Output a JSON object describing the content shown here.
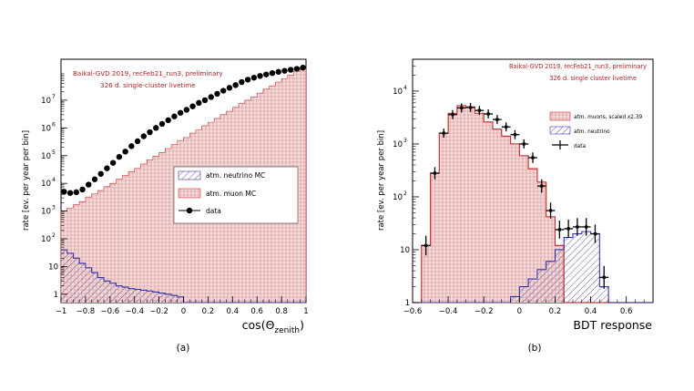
{
  "chart_data": [
    {
      "type": "histogram",
      "panel_label": "(a)",
      "annotations": [
        "Baikal-GVD 2019, recFeb21_run3, preliminary",
        "326 d. single-cluster livetime"
      ],
      "xlabel_main": "cos(Θ",
      "xlabel_sub": "zenith",
      "xlabel_close": ")",
      "ylabel": "rate [ev. per year per bin]",
      "xlim": [
        -1,
        1
      ],
      "ylim": [
        0.5,
        300000000
      ],
      "yscale": "log",
      "x_ticks": [
        "−1",
        "−0.8",
        "−0.6",
        "−0.4",
        "−0.2",
        "0",
        "0.2",
        "0.4",
        "0.6",
        "0.8",
        "1"
      ],
      "x_tick_values": [
        -1,
        -0.8,
        -0.6,
        -0.4,
        -0.2,
        0,
        0.2,
        0.4,
        0.6,
        0.8,
        1
      ],
      "y_ticks": [
        {
          "value": 1,
          "base": "1",
          "exp": ""
        },
        {
          "value": 10,
          "base": "10",
          "exp": ""
        },
        {
          "value": 100,
          "base": "10",
          "exp": "2"
        },
        {
          "value": 1000,
          "base": "10",
          "exp": "3"
        },
        {
          "value": 10000,
          "base": "10",
          "exp": "4"
        },
        {
          "value": 100000,
          "base": "10",
          "exp": "5"
        },
        {
          "value": 1000000,
          "base": "10",
          "exp": "6"
        },
        {
          "value": 10000000,
          "base": "10",
          "exp": "7"
        }
      ],
      "bin_edges": [
        -1,
        -0.95,
        -0.9,
        -0.85,
        -0.8,
        -0.75,
        -0.7,
        -0.65,
        -0.6,
        -0.55,
        -0.5,
        -0.45,
        -0.4,
        -0.35,
        -0.3,
        -0.25,
        -0.2,
        -0.15,
        -0.1,
        -0.05,
        0,
        0.05,
        0.1,
        0.15,
        0.2,
        0.25,
        0.3,
        0.35,
        0.4,
        0.45,
        0.5,
        0.55,
        0.6,
        0.65,
        0.7,
        0.75,
        0.8,
        0.85,
        0.9,
        0.95,
        1
      ],
      "series": [
        {
          "name": "atm. muon MC",
          "kind": "filled-histogram",
          "color": "#cc3333",
          "values": [
            1000,
            1300,
            1700,
            2200,
            3200,
            4200,
            5500,
            7600,
            10000,
            14000,
            19000,
            26000,
            35000,
            50000,
            70000,
            95000,
            130000,
            180000,
            250000,
            350000,
            450000,
            650000,
            850000,
            1200000,
            1600000,
            2200000,
            3000000,
            4000000,
            5500000,
            7500000,
            10000000,
            13000000,
            18000000,
            25000000,
            33000000,
            45000000,
            60000000,
            80000000,
            110000000,
            150000000
          ]
        },
        {
          "name": "atm. neutrino MC",
          "kind": "hatched-histogram",
          "color": "#3333aa",
          "values": [
            40,
            30,
            20,
            13,
            9,
            6,
            4,
            3,
            2.5,
            2,
            1.8,
            1.6,
            1.5,
            1.4,
            1.3,
            1.2,
            1.1,
            1,
            0.9,
            0.8,
            0.5,
            0.5,
            0.5,
            0.5,
            0.5,
            0.5,
            0.5,
            0.5,
            0.5,
            0.5,
            0.5,
            0.5,
            0.5,
            0.5,
            0.5,
            0.5,
            0.5,
            0.5,
            0.5,
            0.5
          ]
        },
        {
          "name": "data",
          "kind": "points",
          "color": "#000000",
          "x": [
            -0.975,
            -0.925,
            -0.875,
            -0.825,
            -0.775,
            -0.725,
            -0.675,
            -0.625,
            -0.575,
            -0.525,
            -0.475,
            -0.425,
            -0.375,
            -0.325,
            -0.275,
            -0.225,
            -0.175,
            -0.125,
            -0.075,
            -0.025,
            0.025,
            0.075,
            0.125,
            0.175,
            0.225,
            0.275,
            0.325,
            0.375,
            0.425,
            0.475,
            0.525,
            0.575,
            0.625,
            0.675,
            0.725,
            0.775,
            0.825,
            0.875,
            0.925,
            0.975
          ],
          "values": [
            5000,
            4500,
            4800,
            6000,
            9000,
            14000,
            22000,
            35000,
            55000,
            90000,
            140000,
            220000,
            330000,
            500000,
            700000,
            1000000,
            1400000,
            1900000,
            2600000,
            3500000,
            4500000,
            6000000,
            8000000,
            10000000,
            13000000,
            17000000,
            22000000,
            28000000,
            35000000,
            45000000,
            55000000,
            65000000,
            75000000,
            85000000,
            95000000,
            105000000,
            115000000,
            125000000,
            135000000,
            150000000
          ]
        }
      ],
      "legend": [
        {
          "label": "atm. neutrino MC",
          "marker": "neutrino"
        },
        {
          "label": "atm. muon MC",
          "marker": "muon"
        },
        {
          "label": "data",
          "marker": "point"
        }
      ],
      "legend_position": "center-right"
    },
    {
      "type": "histogram",
      "panel_label": "(b)",
      "annotations": [
        "Baikal-GVD 2019, recFeb21_run3, preliminary",
        "326 d. single cluster livetime"
      ],
      "xlabel": "BDT response",
      "ylabel": "rate [ev. per year per bin]",
      "xlim": [
        -0.6,
        0.75
      ],
      "ylim": [
        1,
        40000
      ],
      "yscale": "log",
      "x_ticks": [
        "−0.6",
        "−0.4",
        "−0.2",
        "0",
        "0.2",
        "0.4",
        "0.6"
      ],
      "x_tick_values": [
        -0.6,
        -0.4,
        -0.2,
        0,
        0.2,
        0.4,
        0.6
      ],
      "y_ticks": [
        {
          "value": 1,
          "base": "1",
          "exp": ""
        },
        {
          "value": 10,
          "base": "10",
          "exp": ""
        },
        {
          "value": 100,
          "base": "10",
          "exp": "2"
        },
        {
          "value": 1000,
          "base": "10",
          "exp": "3"
        },
        {
          "value": 10000,
          "base": "10",
          "exp": "4"
        }
      ],
      "bin_edges": [
        -0.6,
        -0.55,
        -0.5,
        -0.45,
        -0.4,
        -0.35,
        -0.3,
        -0.25,
        -0.2,
        -0.15,
        -0.1,
        -0.05,
        0,
        0.05,
        0.1,
        0.15,
        0.2,
        0.25,
        0.3,
        0.35,
        0.4,
        0.45,
        0.5,
        0.55,
        0.6,
        0.65,
        0.7,
        0.75
      ],
      "series": [
        {
          "name": "atm. muons, scaled x2.39",
          "kind": "filled-histogram",
          "color": "#cc3333",
          "values": [
            0,
            12,
            280,
            1600,
            3800,
            5300,
            5000,
            3800,
            2600,
            1900,
            1400,
            1000,
            600,
            340,
            190,
            42,
            12,
            0,
            0,
            0,
            0,
            0,
            0,
            0,
            0,
            0,
            0
          ]
        },
        {
          "name": "atm. neutrino",
          "kind": "hatched-histogram",
          "color": "#3333aa",
          "values": [
            0,
            0,
            0,
            0,
            0,
            0,
            0,
            0,
            0,
            0,
            0,
            1.3,
            2,
            2.8,
            4.2,
            6,
            10,
            17,
            20,
            22,
            20,
            2,
            1,
            1,
            1,
            1,
            1
          ]
        },
        {
          "name": "data",
          "kind": "points",
          "color": "#000000",
          "x": [
            -0.525,
            -0.475,
            -0.425,
            -0.375,
            -0.325,
            -0.275,
            -0.225,
            -0.175,
            -0.125,
            -0.075,
            -0.025,
            0.025,
            0.075,
            0.125,
            0.175,
            0.225,
            0.275,
            0.325,
            0.375,
            0.425,
            0.475
          ],
          "values": [
            12,
            280,
            1600,
            3600,
            4800,
            4900,
            4300,
            3700,
            2900,
            2100,
            1500,
            1000,
            550,
            160,
            55,
            24,
            25,
            27,
            27,
            20,
            3
          ]
        }
      ],
      "legend": [
        {
          "label": "atm. muons, scaled x2.39",
          "marker": "muon"
        },
        {
          "label": "atm. neutrino",
          "marker": "neutrino"
        },
        {
          "label": "data",
          "marker": "cross"
        }
      ],
      "legend_position": "top-right"
    }
  ]
}
